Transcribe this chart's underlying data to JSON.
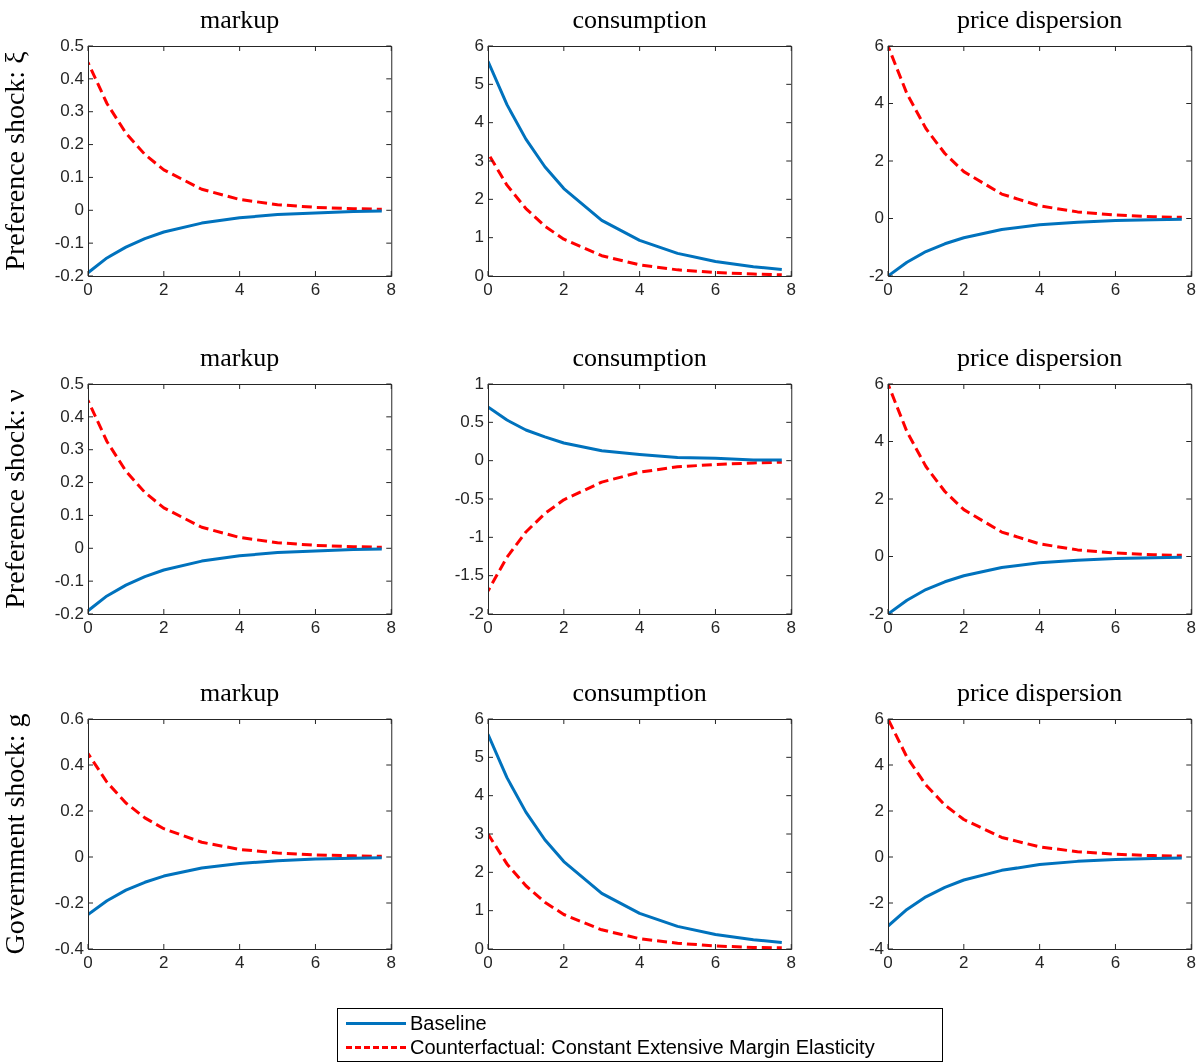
{
  "chart_data": [
    {
      "type": "line",
      "title": "markup",
      "ylabel": "Preference shock: ξ",
      "x": [
        0,
        0.5,
        1,
        1.5,
        2,
        3,
        4,
        5,
        6,
        7,
        7.75
      ],
      "xlim": [
        0,
        8
      ],
      "xticks": [
        0,
        2,
        4,
        6,
        8
      ],
      "ylim": [
        -0.2,
        0.5
      ],
      "yticks": [
        -0.2,
        -0.1,
        0,
        0.1,
        0.2,
        0.3,
        0.4,
        0.5
      ],
      "grid": false,
      "legend": false,
      "series": [
        {
          "color": "#0072bd",
          "line_style": "solid",
          "values": [
            -0.19,
            -0.145,
            -0.112,
            -0.086,
            -0.066,
            -0.039,
            -0.023,
            -0.013,
            -0.008,
            -0.004,
            -0.002
          ]
        },
        {
          "color": "#ff0000",
          "line_style": "dashed",
          "values": [
            0.45,
            0.325,
            0.235,
            0.17,
            0.123,
            0.064,
            0.033,
            0.017,
            0.009,
            0.005,
            0.003
          ]
        }
      ]
    },
    {
      "type": "line",
      "title": "consumption",
      "x": [
        0,
        0.5,
        1,
        1.5,
        2,
        3,
        4,
        5,
        6,
        7,
        7.75
      ],
      "xlim": [
        0,
        8
      ],
      "xticks": [
        0,
        2,
        4,
        6,
        8
      ],
      "ylim": [
        0,
        6
      ],
      "yticks": [
        0,
        1,
        2,
        3,
        4,
        5,
        6
      ],
      "grid": false,
      "legend": false,
      "series": [
        {
          "color": "#0072bd",
          "line_style": "solid",
          "values": [
            5.6,
            4.47,
            3.57,
            2.85,
            2.28,
            1.45,
            0.93,
            0.59,
            0.38,
            0.24,
            0.17
          ]
        },
        {
          "color": "#ff0000",
          "line_style": "dashed",
          "values": [
            3.2,
            2.37,
            1.76,
            1.3,
            0.96,
            0.53,
            0.29,
            0.16,
            0.09,
            0.05,
            0.03
          ]
        }
      ]
    },
    {
      "type": "line",
      "title": "price dispersion",
      "x": [
        0,
        0.5,
        1,
        1.5,
        2,
        3,
        4,
        5,
        6,
        7,
        7.75
      ],
      "xlim": [
        0,
        8
      ],
      "xticks": [
        0,
        2,
        4,
        6,
        8
      ],
      "ylim": [
        -2,
        6
      ],
      "yticks": [
        -2,
        0,
        2,
        4,
        6
      ],
      "grid": false,
      "legend": false,
      "series": [
        {
          "color": "#0072bd",
          "line_style": "solid",
          "values": [
            -2,
            -1.52,
            -1.15,
            -0.88,
            -0.67,
            -0.38,
            -0.22,
            -0.13,
            -0.07,
            -0.04,
            -0.03
          ]
        },
        {
          "color": "#ff0000",
          "line_style": "dashed",
          "values": [
            6,
            4.34,
            3.13,
            2.26,
            1.63,
            0.85,
            0.44,
            0.23,
            0.12,
            0.06,
            0.04
          ]
        }
      ]
    },
    {
      "type": "line",
      "title": "markup",
      "ylabel": "Preference shock: ν",
      "x": [
        0,
        0.5,
        1,
        1.5,
        2,
        3,
        4,
        5,
        6,
        7,
        7.75
      ],
      "xlim": [
        0,
        8
      ],
      "xticks": [
        0,
        2,
        4,
        6,
        8
      ],
      "ylim": [
        -0.2,
        0.5
      ],
      "yticks": [
        -0.2,
        -0.1,
        0,
        0.1,
        0.2,
        0.3,
        0.4,
        0.5
      ],
      "grid": false,
      "legend": false,
      "series": [
        {
          "color": "#0072bd",
          "line_style": "solid",
          "values": [
            -0.19,
            -0.145,
            -0.112,
            -0.086,
            -0.066,
            -0.039,
            -0.023,
            -0.013,
            -0.008,
            -0.004,
            -0.002
          ]
        },
        {
          "color": "#ff0000",
          "line_style": "dashed",
          "values": [
            0.45,
            0.325,
            0.235,
            0.17,
            0.123,
            0.064,
            0.033,
            0.017,
            0.009,
            0.005,
            0.003
          ]
        }
      ]
    },
    {
      "type": "line",
      "title": "consumption",
      "x": [
        0,
        0.5,
        1,
        1.5,
        2,
        3,
        4,
        5,
        6,
        7,
        7.75
      ],
      "xlim": [
        0,
        8
      ],
      "xticks": [
        0,
        2,
        4,
        6,
        8
      ],
      "ylim": [
        -2,
        1
      ],
      "yticks": [
        -2,
        -1.5,
        -1,
        -0.5,
        0,
        0.5,
        1
      ],
      "grid": false,
      "legend": false,
      "series": [
        {
          "color": "#0072bd",
          "line_style": "solid",
          "values": [
            0.7,
            0.53,
            0.4,
            0.31,
            0.23,
            0.13,
            0.08,
            0.04,
            0.03,
            0.01,
            0.01
          ]
        },
        {
          "color": "#ff0000",
          "line_style": "dashed",
          "values": [
            -1.7,
            -1.26,
            -0.93,
            -0.69,
            -0.51,
            -0.28,
            -0.15,
            -0.08,
            -0.05,
            -0.03,
            -0.02
          ]
        }
      ]
    },
    {
      "type": "line",
      "title": "price dispersion",
      "x": [
        0,
        0.5,
        1,
        1.5,
        2,
        3,
        4,
        5,
        6,
        7,
        7.75
      ],
      "xlim": [
        0,
        8
      ],
      "xticks": [
        0,
        2,
        4,
        6,
        8
      ],
      "ylim": [
        -2,
        6
      ],
      "yticks": [
        -2,
        0,
        2,
        4,
        6
      ],
      "grid": false,
      "legend": false,
      "series": [
        {
          "color": "#0072bd",
          "line_style": "solid",
          "values": [
            -2,
            -1.52,
            -1.15,
            -0.88,
            -0.67,
            -0.38,
            -0.22,
            -0.13,
            -0.07,
            -0.04,
            -0.03
          ]
        },
        {
          "color": "#ff0000",
          "line_style": "dashed",
          "values": [
            6,
            4.34,
            3.13,
            2.26,
            1.63,
            0.85,
            0.44,
            0.23,
            0.12,
            0.06,
            0.04
          ]
        }
      ]
    },
    {
      "type": "line",
      "title": "markup",
      "ylabel": "Government shock: g",
      "x": [
        0,
        0.5,
        1,
        1.5,
        2,
        3,
        4,
        5,
        6,
        7,
        7.75
      ],
      "xlim": [
        0,
        8
      ],
      "xticks": [
        0,
        2,
        4,
        6,
        8
      ],
      "ylim": [
        -0.4,
        0.6
      ],
      "yticks": [
        -0.4,
        -0.2,
        0,
        0.2,
        0.4,
        0.6
      ],
      "grid": false,
      "legend": false,
      "series": [
        {
          "color": "#0072bd",
          "line_style": "solid",
          "values": [
            -0.25,
            -0.19,
            -0.144,
            -0.11,
            -0.083,
            -0.048,
            -0.028,
            -0.016,
            -0.009,
            -0.005,
            -0.003
          ]
        },
        {
          "color": "#ff0000",
          "line_style": "dashed",
          "values": [
            0.45,
            0.325,
            0.235,
            0.17,
            0.123,
            0.064,
            0.033,
            0.017,
            0.009,
            0.005,
            0.003
          ]
        }
      ]
    },
    {
      "type": "line",
      "title": "consumption",
      "x": [
        0,
        0.5,
        1,
        1.5,
        2,
        3,
        4,
        5,
        6,
        7,
        7.75
      ],
      "xlim": [
        0,
        8
      ],
      "xticks": [
        0,
        2,
        4,
        6,
        8
      ],
      "ylim": [
        0,
        6
      ],
      "yticks": [
        0,
        1,
        2,
        3,
        4,
        5,
        6
      ],
      "grid": false,
      "legend": "bottom",
      "series": [
        {
          "name": "Baseline",
          "color": "#0072bd",
          "line_style": "solid",
          "values": [
            5.6,
            4.47,
            3.57,
            2.85,
            2.28,
            1.45,
            0.93,
            0.59,
            0.38,
            0.24,
            0.17
          ]
        },
        {
          "name": "Counterfactual: Constant Extensive Margin Elasticity",
          "color": "#ff0000",
          "line_style": "dashed",
          "values": [
            3.0,
            2.22,
            1.65,
            1.22,
            0.9,
            0.5,
            0.27,
            0.15,
            0.08,
            0.04,
            0.03
          ]
        }
      ]
    },
    {
      "type": "line",
      "title": "price dispersion",
      "x": [
        0,
        0.5,
        1,
        1.5,
        2,
        3,
        4,
        5,
        6,
        7,
        7.75
      ],
      "xlim": [
        0,
        8
      ],
      "xticks": [
        0,
        2,
        4,
        6,
        8
      ],
      "ylim": [
        -4,
        6
      ],
      "yticks": [
        -4,
        -2,
        0,
        2,
        4,
        6
      ],
      "grid": false,
      "legend": false,
      "series": [
        {
          "color": "#0072bd",
          "line_style": "solid",
          "values": [
            -3,
            -2.28,
            -1.73,
            -1.32,
            -1,
            -0.58,
            -0.33,
            -0.19,
            -0.11,
            -0.06,
            -0.04
          ]
        },
        {
          "color": "#ff0000",
          "line_style": "dashed",
          "values": [
            6,
            4.34,
            3.13,
            2.26,
            1.63,
            0.85,
            0.44,
            0.23,
            0.12,
            0.06,
            0.04
          ]
        }
      ]
    }
  ]
}
